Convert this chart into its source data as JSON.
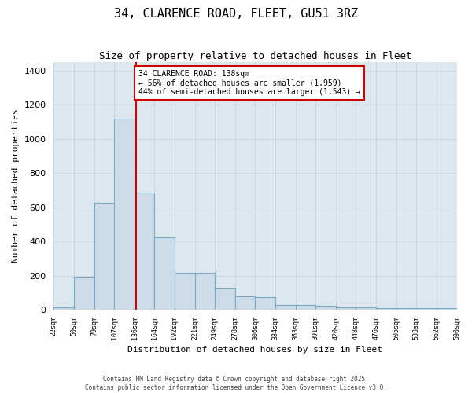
{
  "title": "34, CLARENCE ROAD, FLEET, GU51 3RZ",
  "subtitle": "Size of property relative to detached houses in Fleet",
  "xlabel": "Distribution of detached houses by size in Fleet",
  "ylabel": "Number of detached properties",
  "bar_edges": [
    22,
    50,
    79,
    107,
    136,
    164,
    192,
    221,
    249,
    278,
    306,
    334,
    363,
    391,
    420,
    448,
    476,
    505,
    533,
    562,
    590
  ],
  "bar_heights": [
    15,
    190,
    625,
    1120,
    685,
    425,
    215,
    215,
    125,
    80,
    75,
    30,
    30,
    22,
    12,
    12,
    10,
    10,
    10,
    10
  ],
  "bar_color": "#ccdce8",
  "bar_edge_color": "#7aaac8",
  "red_line_x": 138,
  "annotation_text": "34 CLARENCE ROAD: 138sqm\n← 56% of detached houses are smaller (1,959)\n44% of semi-detached houses are larger (1,543) →",
  "annotation_box_color": "#ffffff",
  "annotation_box_edge": "#cc0000",
  "annotation_text_color": "#000000",
  "red_line_color": "#cc0000",
  "ylim": [
    0,
    1450
  ],
  "yticks": [
    0,
    200,
    400,
    600,
    800,
    1000,
    1200,
    1400
  ],
  "grid_color": "#c8d4e0",
  "bg_color": "#dce8f0",
  "fig_bg_color": "#ffffff",
  "footer_line1": "Contains HM Land Registry data © Crown copyright and database right 2025.",
  "footer_line2": "Contains public sector information licensed under the Open Government Licence v3.0.",
  "tick_labels": [
    "22sqm",
    "50sqm",
    "79sqm",
    "107sqm",
    "136sqm",
    "164sqm",
    "192sqm",
    "221sqm",
    "249sqm",
    "278sqm",
    "306sqm",
    "334sqm",
    "363sqm",
    "391sqm",
    "420sqm",
    "448sqm",
    "476sqm",
    "505sqm",
    "533sqm",
    "562sqm",
    "590sqm"
  ]
}
